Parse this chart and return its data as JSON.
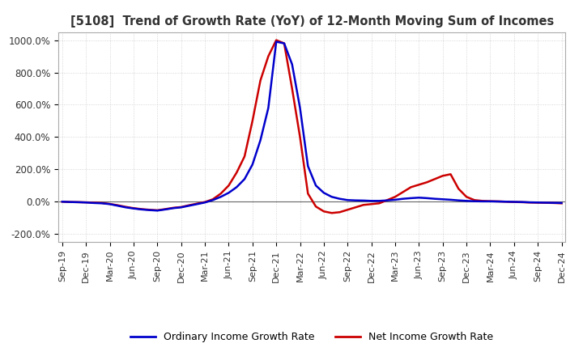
{
  "title": "[5108]  Trend of Growth Rate (YoY) of 12-Month Moving Sum of Incomes",
  "ylim": [
    -250,
    1050
  ],
  "yticks": [
    -200,
    0,
    200,
    400,
    600,
    800,
    1000
  ],
  "ytick_labels": [
    "-200.0%",
    "0.0%",
    "200.0%",
    "400.0%",
    "600.0%",
    "800.0%",
    "1000.0%"
  ],
  "legend_labels": [
    "Ordinary Income Growth Rate",
    "Net Income Growth Rate"
  ],
  "line_colors": [
    "#0000cc",
    "#cc0000"
  ],
  "background_color": "#ffffff",
  "plot_bg_color": "#ffffff",
  "grid_color": "#cccccc",
  "ordinary_income": [
    0,
    -2,
    -3,
    -5,
    -8,
    -10,
    -15,
    -25,
    -35,
    -42,
    -48,
    -52,
    -55,
    -48,
    -40,
    -35,
    -25,
    -15,
    -5,
    10,
    30,
    55,
    90,
    140,
    230,
    380,
    580,
    990,
    980,
    850,
    580,
    220,
    100,
    55,
    30,
    18,
    10,
    8,
    7,
    5,
    5,
    8,
    12,
    18,
    22,
    25,
    22,
    18,
    15,
    12,
    8,
    5,
    3,
    2,
    2,
    1,
    0,
    -1,
    -2,
    -4,
    -5,
    -6,
    -7,
    -8
  ],
  "net_income": [
    0,
    -2,
    -3,
    -4,
    -6,
    -8,
    -14,
    -22,
    -32,
    -40,
    -46,
    -50,
    -53,
    -46,
    -38,
    -33,
    -22,
    -12,
    -2,
    15,
    50,
    100,
    180,
    280,
    500,
    750,
    900,
    1000,
    980,
    700,
    400,
    50,
    -30,
    -60,
    -70,
    -65,
    -50,
    -35,
    -20,
    -15,
    -10,
    10,
    30,
    60,
    90,
    105,
    120,
    140,
    160,
    170,
    80,
    30,
    10,
    5,
    3,
    2,
    0,
    -2,
    -3,
    -5,
    -6,
    -7,
    -8,
    -10
  ],
  "xtick_positions": [
    0,
    3,
    6,
    9,
    12,
    15,
    18,
    21,
    24,
    27,
    30,
    33,
    36,
    39,
    42,
    45,
    48,
    51,
    54,
    57,
    60,
    63
  ],
  "xtick_labels": [
    "Sep-19",
    "Dec-19",
    "Mar-20",
    "Jun-20",
    "Sep-20",
    "Dec-20",
    "Mar-21",
    "Jun-21",
    "Sep-21",
    "Dec-21",
    "Mar-22",
    "Jun-22",
    "Sep-22",
    "Dec-22",
    "Mar-23",
    "Jun-23",
    "Sep-23",
    "Dec-23",
    "Mar-24",
    "Jun-24",
    "Sep-24",
    "Dec-24"
  ]
}
